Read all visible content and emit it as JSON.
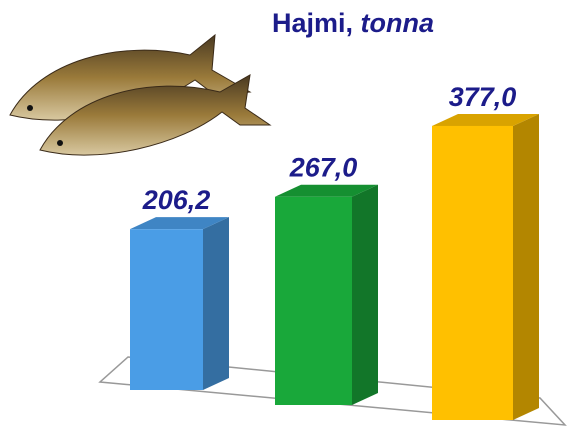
{
  "chart_data": {
    "type": "bar3d",
    "title": "Hajmi,",
    "unit": "tonna",
    "categories": [
      null,
      null,
      null
    ],
    "values": [
      206.2,
      267.0,
      377.0
    ],
    "value_labels": [
      "206,2",
      "267,0",
      "377,0"
    ],
    "colors": [
      "#4a9de6",
      "#19a83a",
      "#ffc000"
    ]
  }
}
